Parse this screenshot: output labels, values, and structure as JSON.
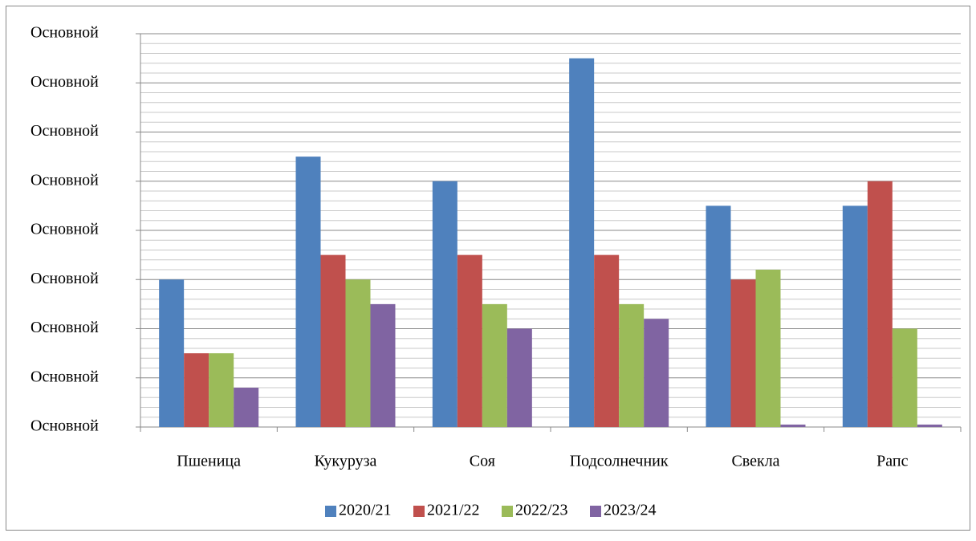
{
  "chart_data": {
    "type": "bar",
    "categories": [
      "Пшеница",
      "Кукуруза",
      "Соя",
      "Подсолнечник",
      "Свекла",
      "Рапс"
    ],
    "series": [
      {
        "name": "2020/21",
        "color": "#4f81bd",
        "values": [
          3,
          5.5,
          5,
          7.5,
          4.5,
          4.5
        ]
      },
      {
        "name": "2021/22",
        "color": "#c0504d",
        "values": [
          1.5,
          3.5,
          3.5,
          3.5,
          3,
          5
        ]
      },
      {
        "name": "2022/23",
        "color": "#9bbb59",
        "values": [
          1.5,
          3,
          2.5,
          2.5,
          3.2,
          2
        ]
      },
      {
        "name": "2023/24",
        "color": "#8064a2",
        "values": [
          0.8,
          2.5,
          2,
          2.2,
          0.05,
          0.05
        ]
      }
    ],
    "ylim": [
      0,
      8
    ],
    "yticks": [
      {
        "value": 0,
        "label": "Основной"
      },
      {
        "value": 1,
        "label": "Основной"
      },
      {
        "value": 2,
        "label": "Основной"
      },
      {
        "value": 3,
        "label": "Основной"
      },
      {
        "value": 4,
        "label": "Основной"
      },
      {
        "value": 5,
        "label": "Основной"
      },
      {
        "value": 6,
        "label": "Основной"
      },
      {
        "value": 7,
        "label": "Основной"
      },
      {
        "value": 8,
        "label": "Основной"
      }
    ],
    "grid": true,
    "minor_divisions": 5,
    "legend": "bottom"
  }
}
